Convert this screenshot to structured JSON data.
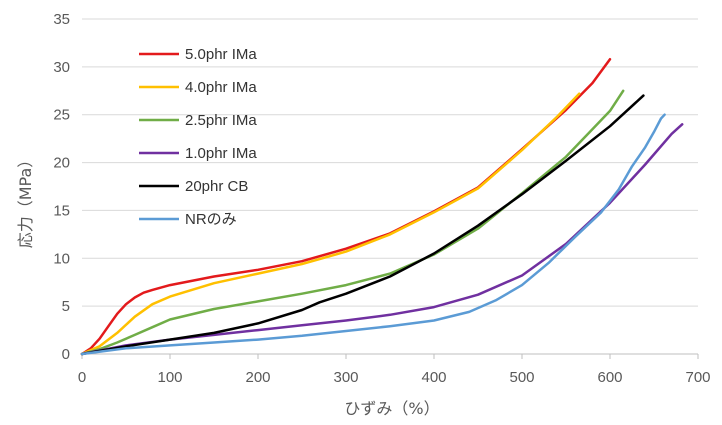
{
  "chart_data": {
    "type": "line",
    "title": "",
    "xlabel": "ひずみ（%）",
    "ylabel": "応力（MPa）",
    "xlim": [
      0,
      700
    ],
    "ylim": [
      0,
      35
    ],
    "xticks": [
      0,
      100,
      200,
      300,
      400,
      500,
      600,
      700
    ],
    "yticks": [
      0,
      5,
      10,
      15,
      20,
      25,
      30,
      35
    ],
    "grid": "horizontal",
    "legend_position": "top-left",
    "series": [
      {
        "name": "5.0phr IMa",
        "color": "#e31a1c",
        "points": [
          [
            0,
            0
          ],
          [
            10,
            0.6
          ],
          [
            20,
            1.6
          ],
          [
            30,
            2.9
          ],
          [
            40,
            4.2
          ],
          [
            50,
            5.2
          ],
          [
            60,
            5.9
          ],
          [
            70,
            6.4
          ],
          [
            80,
            6.7
          ],
          [
            100,
            7.2
          ],
          [
            150,
            8.1
          ],
          [
            200,
            8.8
          ],
          [
            250,
            9.7
          ],
          [
            300,
            11.0
          ],
          [
            350,
            12.6
          ],
          [
            400,
            14.9
          ],
          [
            450,
            17.4
          ],
          [
            500,
            21.4
          ],
          [
            550,
            25.5
          ],
          [
            580,
            28.3
          ],
          [
            600,
            30.8
          ]
        ]
      },
      {
        "name": "4.0phr IMa",
        "color": "#ffc000",
        "points": [
          [
            0,
            0
          ],
          [
            20,
            0.8
          ],
          [
            40,
            2.2
          ],
          [
            60,
            3.9
          ],
          [
            80,
            5.2
          ],
          [
            100,
            6.0
          ],
          [
            150,
            7.4
          ],
          [
            200,
            8.4
          ],
          [
            250,
            9.4
          ],
          [
            300,
            10.7
          ],
          [
            350,
            12.5
          ],
          [
            400,
            14.8
          ],
          [
            450,
            17.3
          ],
          [
            500,
            21.3
          ],
          [
            540,
            24.8
          ],
          [
            565,
            27.2
          ]
        ]
      },
      {
        "name": "2.5phr IMa",
        "color": "#70ad47",
        "points": [
          [
            0,
            0
          ],
          [
            20,
            0.5
          ],
          [
            40,
            1.2
          ],
          [
            60,
            2.0
          ],
          [
            80,
            2.8
          ],
          [
            100,
            3.6
          ],
          [
            150,
            4.7
          ],
          [
            200,
            5.5
          ],
          [
            250,
            6.3
          ],
          [
            300,
            7.2
          ],
          [
            350,
            8.4
          ],
          [
            400,
            10.4
          ],
          [
            450,
            13.1
          ],
          [
            500,
            16.8
          ],
          [
            550,
            20.6
          ],
          [
            600,
            25.4
          ],
          [
            615,
            27.5
          ]
        ]
      },
      {
        "name": "1.0phr IMa",
        "color": "#7030a0",
        "points": [
          [
            0,
            0
          ],
          [
            50,
            0.9
          ],
          [
            100,
            1.5
          ],
          [
            150,
            2.0
          ],
          [
            200,
            2.5
          ],
          [
            250,
            3.0
          ],
          [
            300,
            3.5
          ],
          [
            350,
            4.1
          ],
          [
            400,
            4.9
          ],
          [
            450,
            6.2
          ],
          [
            500,
            8.2
          ],
          [
            550,
            11.5
          ],
          [
            600,
            15.8
          ],
          [
            640,
            19.8
          ],
          [
            670,
            23.0
          ],
          [
            682,
            24.0
          ]
        ]
      },
      {
        "name": "20phr CB",
        "color": "#000000",
        "points": [
          [
            0,
            0
          ],
          [
            50,
            0.8
          ],
          [
            100,
            1.5
          ],
          [
            150,
            2.2
          ],
          [
            200,
            3.2
          ],
          [
            250,
            4.6
          ],
          [
            270,
            5.4
          ],
          [
            300,
            6.3
          ],
          [
            350,
            8.1
          ],
          [
            400,
            10.5
          ],
          [
            450,
            13.4
          ],
          [
            500,
            16.7
          ],
          [
            550,
            20.2
          ],
          [
            600,
            23.8
          ],
          [
            638,
            27.0
          ]
        ]
      },
      {
        "name": "NRのみ",
        "color": "#5b9bd5",
        "points": [
          [
            0,
            0
          ],
          [
            50,
            0.6
          ],
          [
            100,
            0.9
          ],
          [
            150,
            1.2
          ],
          [
            200,
            1.5
          ],
          [
            250,
            1.9
          ],
          [
            300,
            2.4
          ],
          [
            350,
            2.9
          ],
          [
            400,
            3.5
          ],
          [
            440,
            4.4
          ],
          [
            470,
            5.6
          ],
          [
            500,
            7.2
          ],
          [
            530,
            9.5
          ],
          [
            560,
            12.2
          ],
          [
            590,
            14.8
          ],
          [
            610,
            17.2
          ],
          [
            625,
            19.6
          ],
          [
            640,
            21.6
          ],
          [
            650,
            23.2
          ],
          [
            658,
            24.6
          ],
          [
            662,
            25.0
          ]
        ]
      }
    ]
  }
}
